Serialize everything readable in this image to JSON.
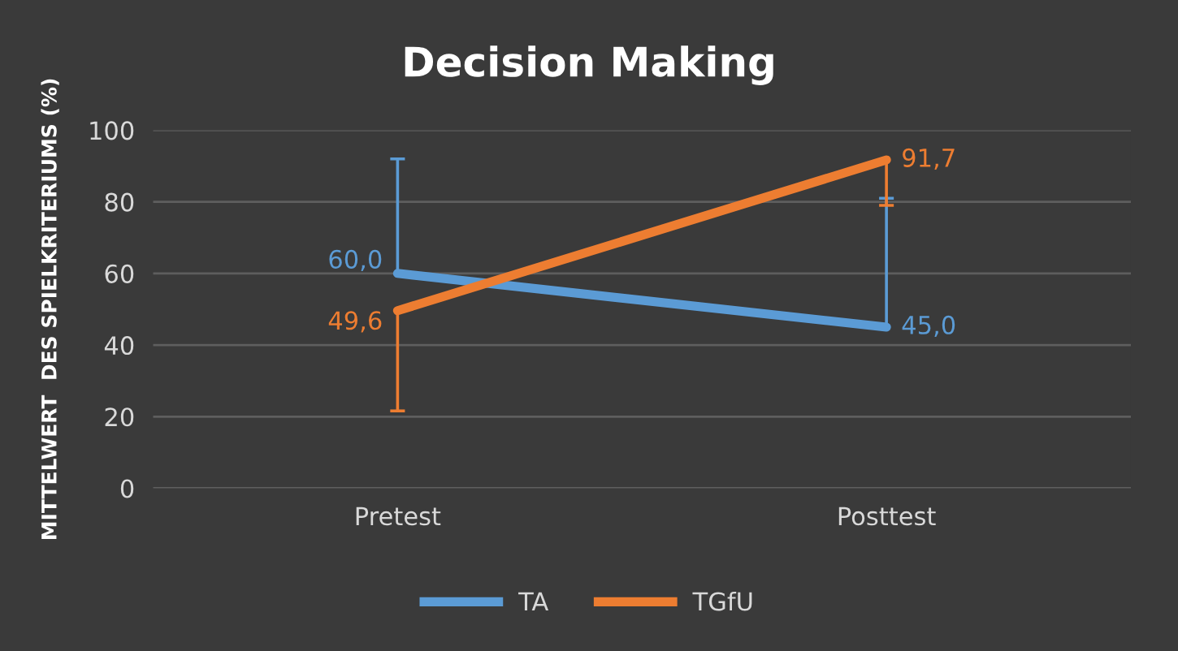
{
  "chart_data": {
    "type": "line",
    "title": "Decision Making",
    "ylabel": "MITTELWERT  DES SPIELKRITERIUMS (%)",
    "categories": [
      "Pretest",
      "Posttest"
    ],
    "series": [
      {
        "name": "TA",
        "color": "#5b9bd5",
        "values": [
          60.0,
          45.0
        ],
        "value_labels": [
          "60,0",
          "45,0"
        ],
        "errors": [
          [
            60.0,
            92
          ],
          [
            45.0,
            81
          ]
        ]
      },
      {
        "name": "TGfU",
        "color": "#ed7d31",
        "values": [
          49.6,
          91.7
        ],
        "value_labels": [
          "49,6",
          "91,7"
        ],
        "errors": [
          [
            21.6,
            49.6
          ],
          [
            79,
            91.7
          ]
        ]
      }
    ],
    "ylim": [
      0,
      100
    ],
    "yticks": [
      0,
      20,
      40,
      60,
      80,
      100
    ],
    "grid": "y",
    "legend": "bottom",
    "marker": "none",
    "line_style": "solid"
  }
}
